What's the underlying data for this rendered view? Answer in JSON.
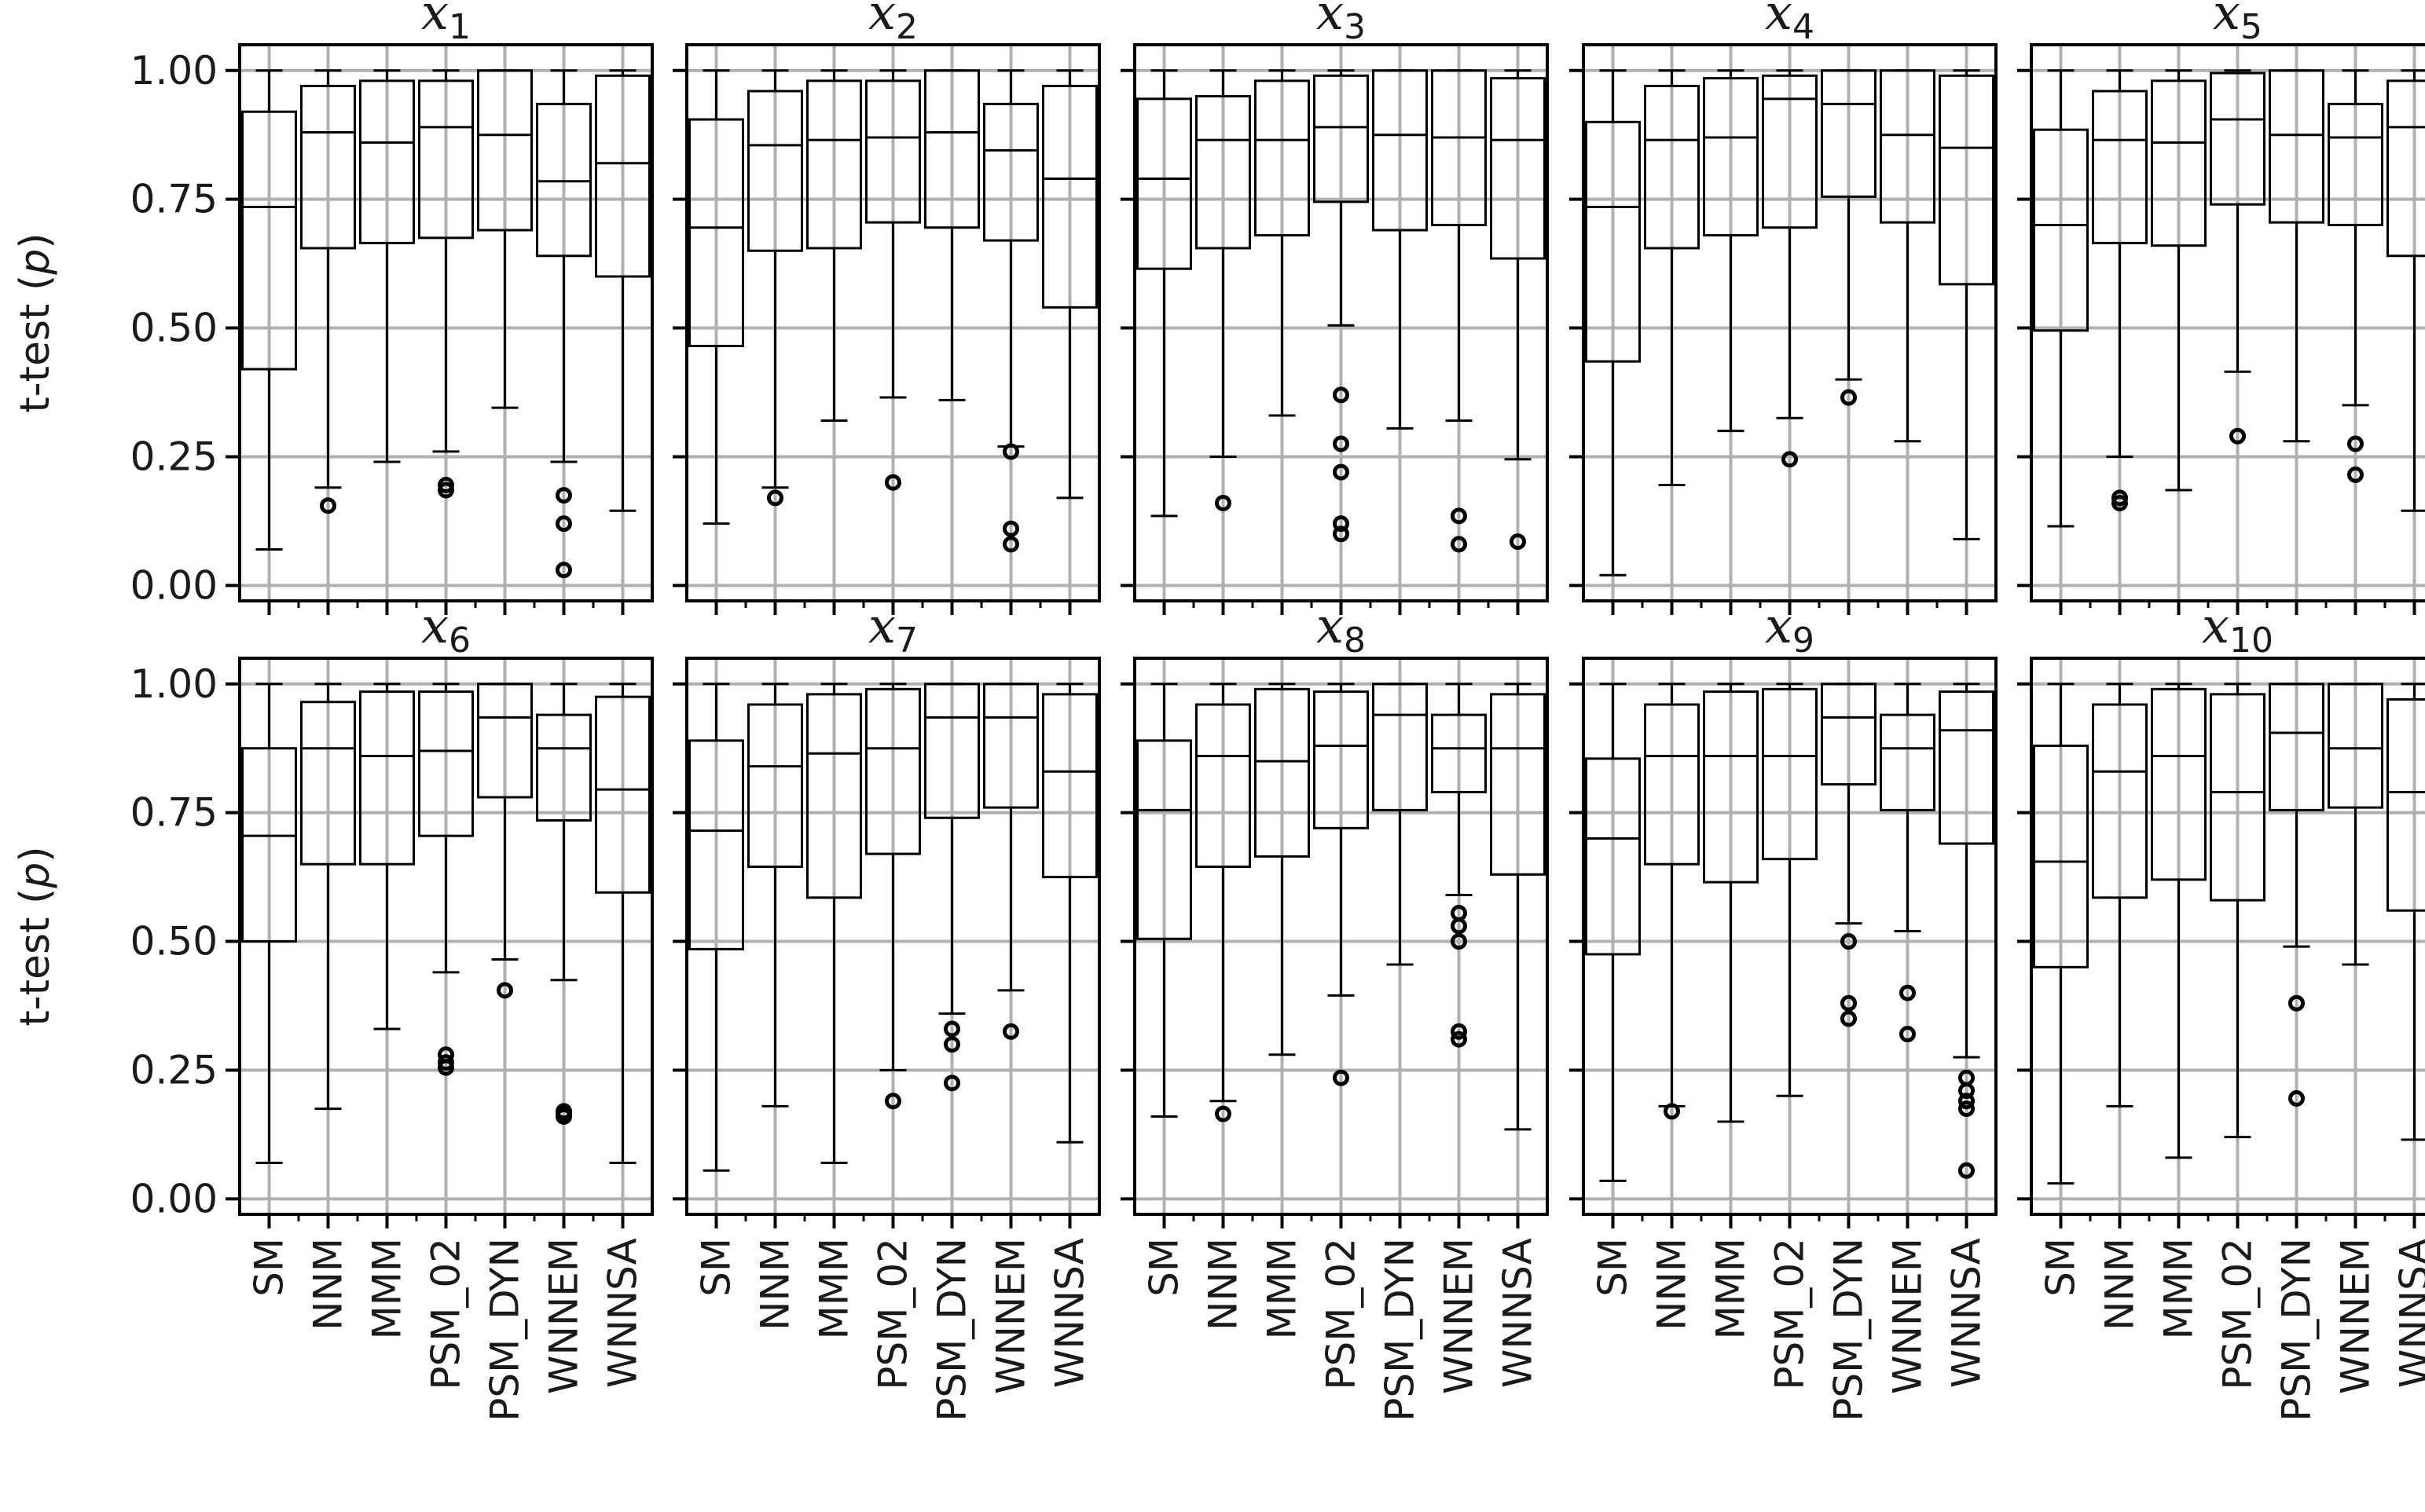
{
  "chart_data": {
    "type": "box",
    "ylabel": "t-test (p)",
    "ylim": [
      -0.03,
      1.05
    ],
    "yticks": [
      0.0,
      0.25,
      0.5,
      0.75,
      1.0
    ],
    "ytick_labels": [
      "0.00",
      "0.25",
      "0.50",
      "0.75",
      "1.00"
    ],
    "categories": [
      "SM",
      "NNM",
      "MMM",
      "PSM_02",
      "PSM_DYN",
      "WNNEM",
      "WNNSA"
    ],
    "grid": true,
    "panels": [
      {
        "title_base": "x",
        "title_sub": "1",
        "boxes": [
          {
            "category": "SM",
            "whisker_low": 0.07,
            "q1": 0.42,
            "median": 0.735,
            "q3": 0.92,
            "whisker_high": 1.0,
            "outliers": []
          },
          {
            "category": "NNM",
            "whisker_low": 0.19,
            "q1": 0.655,
            "median": 0.88,
            "q3": 0.97,
            "whisker_high": 1.0,
            "outliers": [
              0.155
            ]
          },
          {
            "category": "MMM",
            "whisker_low": 0.24,
            "q1": 0.665,
            "median": 0.86,
            "q3": 0.98,
            "whisker_high": 1.0,
            "outliers": []
          },
          {
            "category": "PSM_02",
            "whisker_low": 0.26,
            "q1": 0.675,
            "median": 0.89,
            "q3": 0.98,
            "whisker_high": 1.0,
            "outliers": [
              0.195,
              0.185
            ]
          },
          {
            "category": "PSM_DYN",
            "whisker_low": 0.345,
            "q1": 0.69,
            "median": 0.875,
            "q3": 1.0,
            "whisker_high": 1.0,
            "outliers": []
          },
          {
            "category": "WNNEM",
            "whisker_low": 0.24,
            "q1": 0.64,
            "median": 0.785,
            "q3": 0.935,
            "whisker_high": 1.0,
            "outliers": [
              0.175,
              0.12,
              0.03
            ]
          },
          {
            "category": "WNNSA",
            "whisker_low": 0.145,
            "q1": 0.6,
            "median": 0.82,
            "q3": 0.99,
            "whisker_high": 1.0,
            "outliers": []
          }
        ]
      },
      {
        "title_base": "x",
        "title_sub": "2",
        "boxes": [
          {
            "category": "SM",
            "whisker_low": 0.12,
            "q1": 0.465,
            "median": 0.695,
            "q3": 0.905,
            "whisker_high": 1.0,
            "outliers": []
          },
          {
            "category": "NNM",
            "whisker_low": 0.19,
            "q1": 0.65,
            "median": 0.855,
            "q3": 0.96,
            "whisker_high": 1.0,
            "outliers": [
              0.17
            ]
          },
          {
            "category": "MMM",
            "whisker_low": 0.32,
            "q1": 0.655,
            "median": 0.865,
            "q3": 0.98,
            "whisker_high": 1.0,
            "outliers": []
          },
          {
            "category": "PSM_02",
            "whisker_low": 0.365,
            "q1": 0.705,
            "median": 0.87,
            "q3": 0.98,
            "whisker_high": 1.0,
            "outliers": [
              0.2
            ]
          },
          {
            "category": "PSM_DYN",
            "whisker_low": 0.36,
            "q1": 0.695,
            "median": 0.88,
            "q3": 1.0,
            "whisker_high": 1.0,
            "outliers": []
          },
          {
            "category": "WNNEM",
            "whisker_low": 0.27,
            "q1": 0.67,
            "median": 0.845,
            "q3": 0.935,
            "whisker_high": 1.0,
            "outliers": [
              0.26,
              0.11,
              0.08
            ]
          },
          {
            "category": "WNNSA",
            "whisker_low": 0.17,
            "q1": 0.54,
            "median": 0.79,
            "q3": 0.97,
            "whisker_high": 1.0,
            "outliers": []
          }
        ]
      },
      {
        "title_base": "x",
        "title_sub": "3",
        "boxes": [
          {
            "category": "SM",
            "whisker_low": 0.135,
            "q1": 0.615,
            "median": 0.79,
            "q3": 0.945,
            "whisker_high": 1.0,
            "outliers": []
          },
          {
            "category": "NNM",
            "whisker_low": 0.25,
            "q1": 0.655,
            "median": 0.865,
            "q3": 0.95,
            "whisker_high": 1.0,
            "outliers": [
              0.16
            ]
          },
          {
            "category": "MMM",
            "whisker_low": 0.33,
            "q1": 0.68,
            "median": 0.865,
            "q3": 0.98,
            "whisker_high": 1.0,
            "outliers": []
          },
          {
            "category": "PSM_02",
            "whisker_low": 0.505,
            "q1": 0.745,
            "median": 0.89,
            "q3": 0.99,
            "whisker_high": 1.0,
            "outliers": [
              0.37,
              0.275,
              0.22,
              0.12,
              0.1
            ]
          },
          {
            "category": "PSM_DYN",
            "whisker_low": 0.305,
            "q1": 0.69,
            "median": 0.875,
            "q3": 1.0,
            "whisker_high": 1.0,
            "outliers": []
          },
          {
            "category": "WNNEM",
            "whisker_low": 0.32,
            "q1": 0.7,
            "median": 0.87,
            "q3": 1.0,
            "whisker_high": 1.0,
            "outliers": [
              0.135,
              0.08
            ]
          },
          {
            "category": "WNNSA",
            "whisker_low": 0.245,
            "q1": 0.635,
            "median": 0.865,
            "q3": 0.985,
            "whisker_high": 1.0,
            "outliers": [
              0.085
            ]
          }
        ]
      },
      {
        "title_base": "x",
        "title_sub": "4",
        "boxes": [
          {
            "category": "SM",
            "whisker_low": 0.02,
            "q1": 0.435,
            "median": 0.735,
            "q3": 0.9,
            "whisker_high": 1.0,
            "outliers": []
          },
          {
            "category": "NNM",
            "whisker_low": 0.195,
            "q1": 0.655,
            "median": 0.865,
            "q3": 0.97,
            "whisker_high": 1.0,
            "outliers": []
          },
          {
            "category": "MMM",
            "whisker_low": 0.3,
            "q1": 0.68,
            "median": 0.87,
            "q3": 0.985,
            "whisker_high": 1.0,
            "outliers": []
          },
          {
            "category": "PSM_02",
            "whisker_low": 0.325,
            "q1": 0.695,
            "median": 0.945,
            "q3": 0.99,
            "whisker_high": 1.0,
            "outliers": [
              0.245
            ]
          },
          {
            "category": "PSM_DYN",
            "whisker_low": 0.4,
            "q1": 0.755,
            "median": 0.935,
            "q3": 1.0,
            "whisker_high": 1.0,
            "outliers": [
              0.365
            ]
          },
          {
            "category": "WNNEM",
            "whisker_low": 0.28,
            "q1": 0.705,
            "median": 0.875,
            "q3": 1.0,
            "whisker_high": 1.0,
            "outliers": []
          },
          {
            "category": "WNNSA",
            "whisker_low": 0.09,
            "q1": 0.585,
            "median": 0.85,
            "q3": 0.99,
            "whisker_high": 1.0,
            "outliers": []
          }
        ]
      },
      {
        "title_base": "x",
        "title_sub": "5",
        "boxes": [
          {
            "category": "SM",
            "whisker_low": 0.115,
            "q1": 0.495,
            "median": 0.7,
            "q3": 0.885,
            "whisker_high": 1.0,
            "outliers": []
          },
          {
            "category": "NNM",
            "whisker_low": 0.25,
            "q1": 0.665,
            "median": 0.865,
            "q3": 0.96,
            "whisker_high": 1.0,
            "outliers": [
              0.17,
              0.16
            ]
          },
          {
            "category": "MMM",
            "whisker_low": 0.185,
            "q1": 0.66,
            "median": 0.86,
            "q3": 0.98,
            "whisker_high": 1.0,
            "outliers": []
          },
          {
            "category": "PSM_02",
            "whisker_low": 0.415,
            "q1": 0.74,
            "median": 0.905,
            "q3": 0.995,
            "whisker_high": 1.0,
            "outliers": [
              0.29
            ]
          },
          {
            "category": "PSM_DYN",
            "whisker_low": 0.28,
            "q1": 0.705,
            "median": 0.875,
            "q3": 1.0,
            "whisker_high": 1.0,
            "outliers": []
          },
          {
            "category": "WNNEM",
            "whisker_low": 0.35,
            "q1": 0.7,
            "median": 0.87,
            "q3": 0.935,
            "whisker_high": 1.0,
            "outliers": [
              0.275,
              0.215
            ]
          },
          {
            "category": "WNNSA",
            "whisker_low": 0.145,
            "q1": 0.64,
            "median": 0.89,
            "q3": 0.98,
            "whisker_high": 1.0,
            "outliers": []
          }
        ]
      },
      {
        "title_base": "x",
        "title_sub": "6",
        "boxes": [
          {
            "category": "SM",
            "whisker_low": 0.07,
            "q1": 0.5,
            "median": 0.705,
            "q3": 0.875,
            "whisker_high": 1.0,
            "outliers": []
          },
          {
            "category": "NNM",
            "whisker_low": 0.175,
            "q1": 0.65,
            "median": 0.875,
            "q3": 0.965,
            "whisker_high": 1.0,
            "outliers": []
          },
          {
            "category": "MMM",
            "whisker_low": 0.33,
            "q1": 0.65,
            "median": 0.86,
            "q3": 0.985,
            "whisker_high": 1.0,
            "outliers": []
          },
          {
            "category": "PSM_02",
            "whisker_low": 0.44,
            "q1": 0.705,
            "median": 0.87,
            "q3": 0.985,
            "whisker_high": 1.0,
            "outliers": [
              0.28,
              0.265,
              0.255
            ]
          },
          {
            "category": "PSM_DYN",
            "whisker_low": 0.465,
            "q1": 0.78,
            "median": 0.935,
            "q3": 1.0,
            "whisker_high": 1.0,
            "outliers": [
              0.405
            ]
          },
          {
            "category": "WNNEM",
            "whisker_low": 0.425,
            "q1": 0.735,
            "median": 0.875,
            "q3": 0.94,
            "whisker_high": 1.0,
            "outliers": [
              0.17,
              0.165,
              0.16
            ]
          },
          {
            "category": "WNNSA",
            "whisker_low": 0.07,
            "q1": 0.595,
            "median": 0.795,
            "q3": 0.975,
            "whisker_high": 1.0,
            "outliers": []
          }
        ]
      },
      {
        "title_base": "x",
        "title_sub": "7",
        "boxes": [
          {
            "category": "SM",
            "whisker_low": 0.055,
            "q1": 0.485,
            "median": 0.715,
            "q3": 0.89,
            "whisker_high": 1.0,
            "outliers": []
          },
          {
            "category": "NNM",
            "whisker_low": 0.18,
            "q1": 0.645,
            "median": 0.84,
            "q3": 0.96,
            "whisker_high": 1.0,
            "outliers": []
          },
          {
            "category": "MMM",
            "whisker_low": 0.07,
            "q1": 0.585,
            "median": 0.865,
            "q3": 0.98,
            "whisker_high": 1.0,
            "outliers": []
          },
          {
            "category": "PSM_02",
            "whisker_low": 0.25,
            "q1": 0.67,
            "median": 0.875,
            "q3": 0.99,
            "whisker_high": 1.0,
            "outliers": [
              0.19
            ]
          },
          {
            "category": "PSM_DYN",
            "whisker_low": 0.36,
            "q1": 0.74,
            "median": 0.935,
            "q3": 1.0,
            "whisker_high": 1.0,
            "outliers": [
              0.33,
              0.3,
              0.225
            ]
          },
          {
            "category": "WNNEM",
            "whisker_low": 0.405,
            "q1": 0.76,
            "median": 0.935,
            "q3": 1.0,
            "whisker_high": 1.0,
            "outliers": [
              0.325
            ]
          },
          {
            "category": "WNNSA",
            "whisker_low": 0.11,
            "q1": 0.625,
            "median": 0.83,
            "q3": 0.98,
            "whisker_high": 1.0,
            "outliers": []
          }
        ]
      },
      {
        "title_base": "x",
        "title_sub": "8",
        "boxes": [
          {
            "category": "SM",
            "whisker_low": 0.16,
            "q1": 0.505,
            "median": 0.755,
            "q3": 0.89,
            "whisker_high": 1.0,
            "outliers": []
          },
          {
            "category": "NNM",
            "whisker_low": 0.19,
            "q1": 0.645,
            "median": 0.86,
            "q3": 0.96,
            "whisker_high": 1.0,
            "outliers": [
              0.165
            ]
          },
          {
            "category": "MMM",
            "whisker_low": 0.28,
            "q1": 0.665,
            "median": 0.85,
            "q3": 0.99,
            "whisker_high": 1.0,
            "outliers": []
          },
          {
            "category": "PSM_02",
            "whisker_low": 0.395,
            "q1": 0.72,
            "median": 0.88,
            "q3": 0.985,
            "whisker_high": 1.0,
            "outliers": [
              0.235
            ]
          },
          {
            "category": "PSM_DYN",
            "whisker_low": 0.455,
            "q1": 0.755,
            "median": 0.94,
            "q3": 1.0,
            "whisker_high": 1.0,
            "outliers": []
          },
          {
            "category": "WNNEM",
            "whisker_low": 0.59,
            "q1": 0.79,
            "median": 0.875,
            "q3": 0.94,
            "whisker_high": 1.0,
            "outliers": [
              0.555,
              0.53,
              0.5,
              0.325,
              0.31
            ]
          },
          {
            "category": "WNNSA",
            "whisker_low": 0.135,
            "q1": 0.63,
            "median": 0.875,
            "q3": 0.98,
            "whisker_high": 1.0,
            "outliers": []
          }
        ]
      },
      {
        "title_base": "x",
        "title_sub": "9",
        "boxes": [
          {
            "category": "SM",
            "whisker_low": 0.035,
            "q1": 0.475,
            "median": 0.7,
            "q3": 0.855,
            "whisker_high": 1.0,
            "outliers": []
          },
          {
            "category": "NNM",
            "whisker_low": 0.18,
            "q1": 0.65,
            "median": 0.86,
            "q3": 0.96,
            "whisker_high": 1.0,
            "outliers": [
              0.17
            ]
          },
          {
            "category": "MMM",
            "whisker_low": 0.15,
            "q1": 0.615,
            "median": 0.86,
            "q3": 0.985,
            "whisker_high": 1.0,
            "outliers": []
          },
          {
            "category": "PSM_02",
            "whisker_low": 0.2,
            "q1": 0.66,
            "median": 0.86,
            "q3": 0.99,
            "whisker_high": 1.0,
            "outliers": []
          },
          {
            "category": "PSM_DYN",
            "whisker_low": 0.535,
            "q1": 0.805,
            "median": 0.935,
            "q3": 1.0,
            "whisker_high": 1.0,
            "outliers": [
              0.5,
              0.38,
              0.35
            ]
          },
          {
            "category": "WNNEM",
            "whisker_low": 0.52,
            "q1": 0.755,
            "median": 0.875,
            "q3": 0.94,
            "whisker_high": 1.0,
            "outliers": [
              0.4,
              0.32
            ]
          },
          {
            "category": "WNNSA",
            "whisker_low": 0.275,
            "q1": 0.69,
            "median": 0.91,
            "q3": 0.985,
            "whisker_high": 1.0,
            "outliers": [
              0.235,
              0.21,
              0.19,
              0.175,
              0.055
            ]
          }
        ]
      },
      {
        "title_base": "x",
        "title_sub": "10",
        "boxes": [
          {
            "category": "SM",
            "whisker_low": 0.03,
            "q1": 0.45,
            "median": 0.655,
            "q3": 0.88,
            "whisker_high": 1.0,
            "outliers": []
          },
          {
            "category": "NNM",
            "whisker_low": 0.18,
            "q1": 0.585,
            "median": 0.83,
            "q3": 0.96,
            "whisker_high": 1.0,
            "outliers": []
          },
          {
            "category": "MMM",
            "whisker_low": 0.08,
            "q1": 0.62,
            "median": 0.86,
            "q3": 0.99,
            "whisker_high": 1.0,
            "outliers": []
          },
          {
            "category": "PSM_02",
            "whisker_low": 0.12,
            "q1": 0.58,
            "median": 0.79,
            "q3": 0.98,
            "whisker_high": 1.0,
            "outliers": []
          },
          {
            "category": "PSM_DYN",
            "whisker_low": 0.49,
            "q1": 0.755,
            "median": 0.905,
            "q3": 1.0,
            "whisker_high": 1.0,
            "outliers": [
              0.38,
              0.195
            ]
          },
          {
            "category": "WNNEM",
            "whisker_low": 0.455,
            "q1": 0.76,
            "median": 0.875,
            "q3": 1.0,
            "whisker_high": 1.0,
            "outliers": []
          },
          {
            "category": "WNNSA",
            "whisker_low": 0.115,
            "q1": 0.56,
            "median": 0.79,
            "q3": 0.97,
            "whisker_high": 1.0,
            "outliers": []
          }
        ]
      }
    ]
  }
}
